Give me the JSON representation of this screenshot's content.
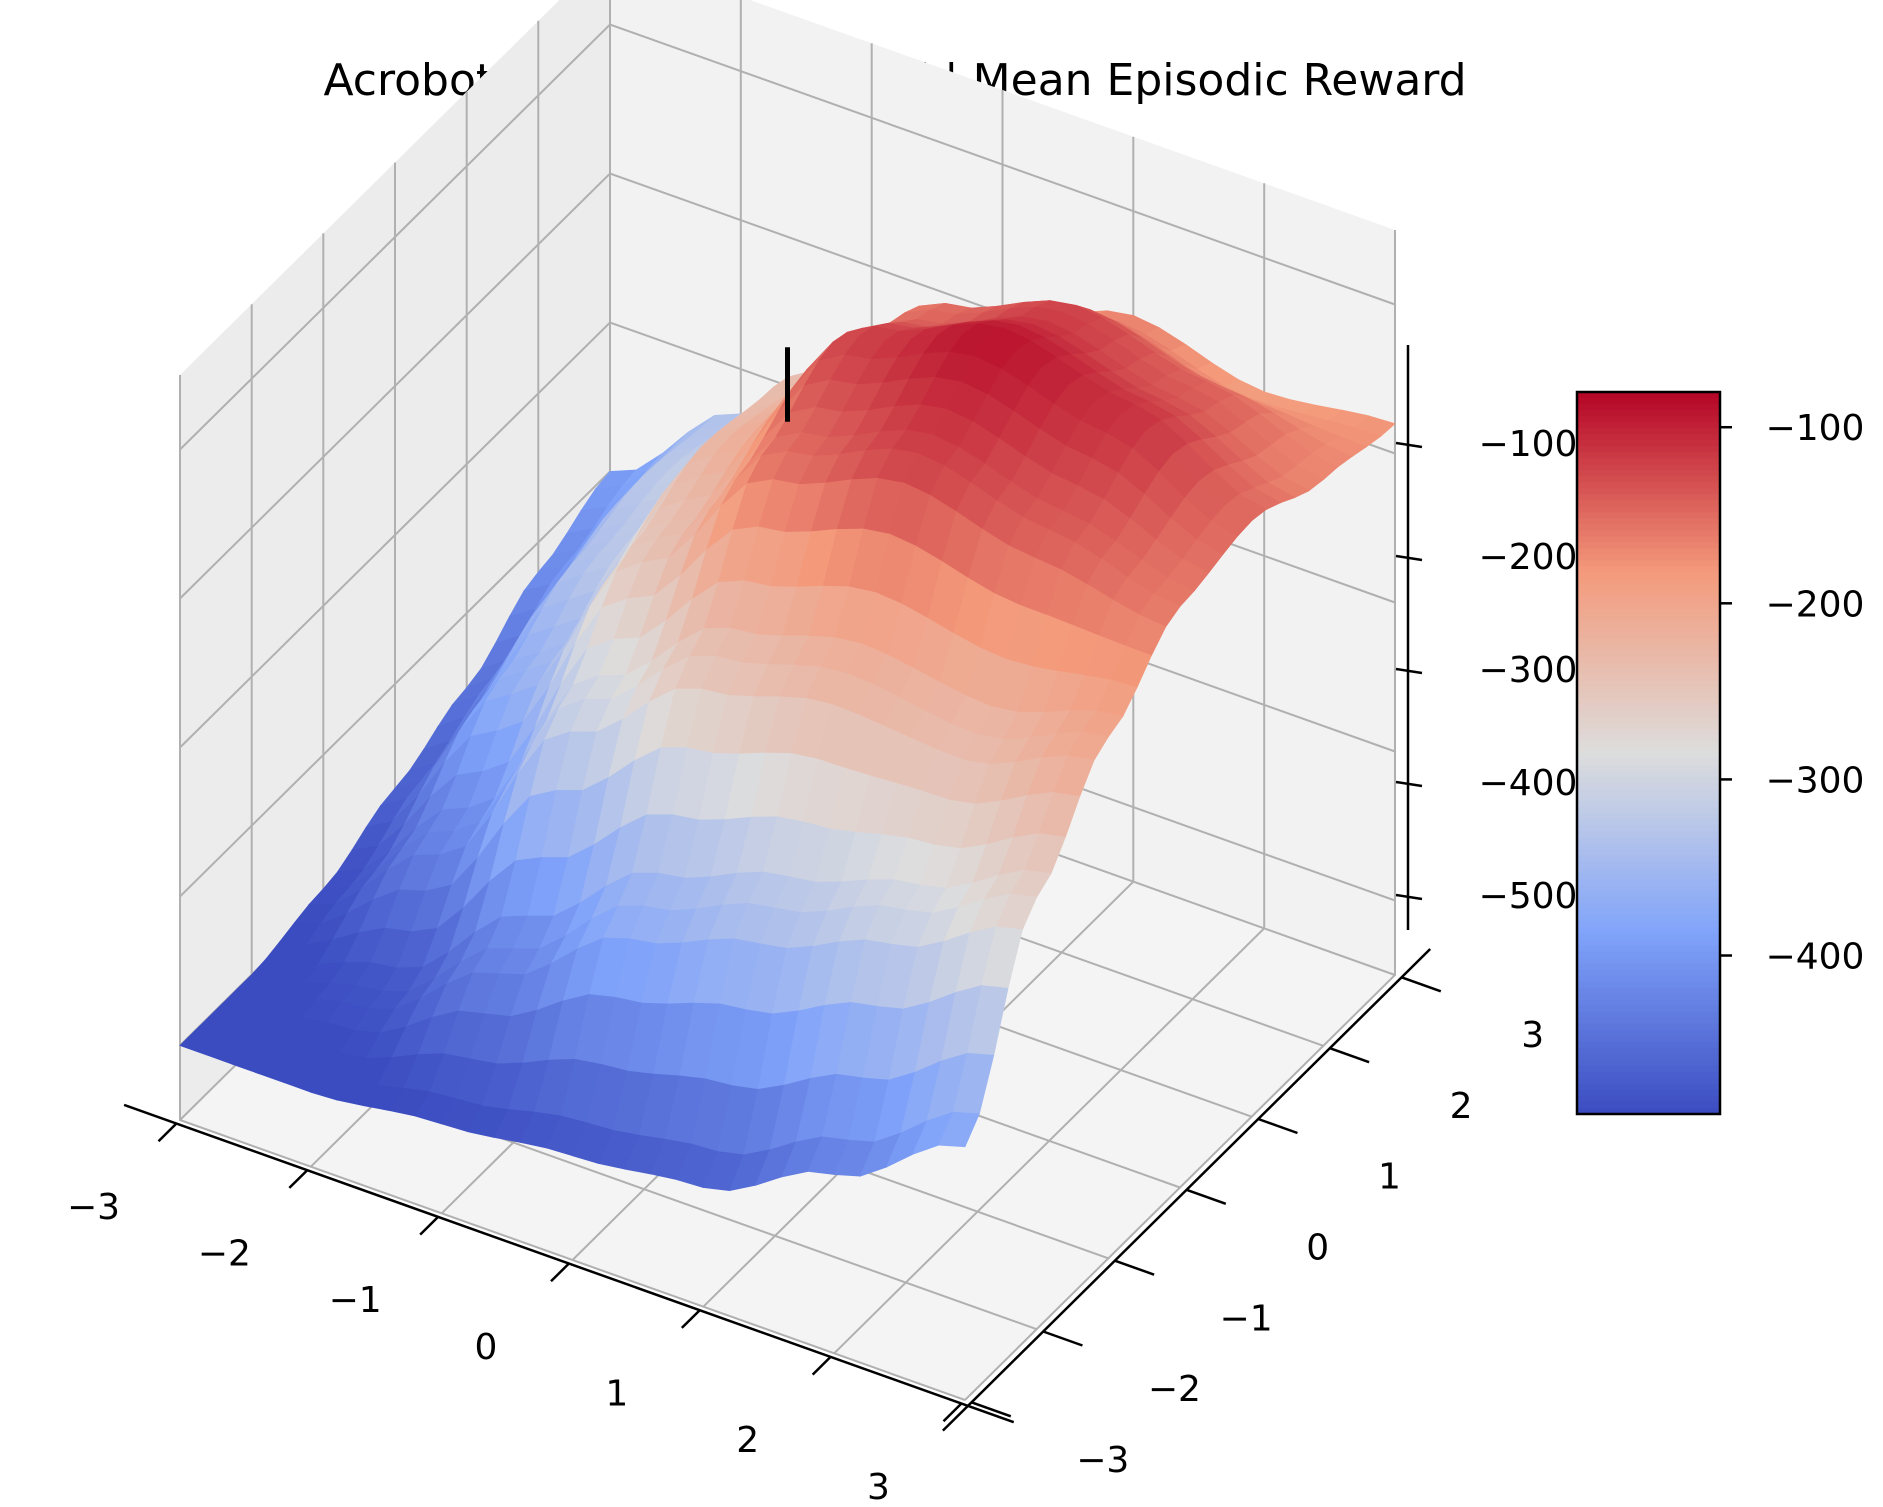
{
  "chart_data": {
    "type": "surface3d",
    "title": "Acrobot-v1 | Classic Control | Mean Episodic Reward",
    "xlabel": "",
    "ylabel": "",
    "zlabel": "",
    "xlim": [
      -3,
      3
    ],
    "ylim": [
      -3,
      3
    ],
    "zlim": [
      -550,
      -50
    ],
    "x_ticks": [
      "−3",
      "−2",
      "−1",
      "0",
      "1",
      "2",
      "3"
    ],
    "y_ticks": [
      "−3",
      "−2",
      "−1",
      "0",
      "1",
      "2",
      "3"
    ],
    "z_ticks": [
      "−500",
      "−400",
      "−300",
      "−200",
      "−100"
    ],
    "colorbar": {
      "min": -490,
      "max": -80,
      "ticks": [
        "−400",
        "−300",
        "−200",
        "−100"
      ],
      "colormap": "coolwarm"
    },
    "surface": {
      "description_grid_x": [
        -3,
        -2,
        -1,
        0,
        1,
        2,
        3
      ],
      "description_grid_y": [
        -3,
        -2,
        -1,
        0,
        1,
        2,
        3
      ],
      "z": [
        [
          -500,
          -500,
          -490,
          -480,
          -470,
          -430,
          -380
        ],
        [
          -500,
          -480,
          -420,
          -360,
          -330,
          -300,
          -260
        ],
        [
          -490,
          -420,
          -300,
          -240,
          -220,
          -230,
          -200
        ],
        [
          -470,
          -360,
          -240,
          -150,
          -120,
          -140,
          -160
        ],
        [
          -450,
          -330,
          -220,
          -120,
          -90,
          -110,
          -150
        ],
        [
          -420,
          -320,
          -230,
          -150,
          -120,
          -140,
          -170
        ],
        [
          -400,
          -330,
          -260,
          -200,
          -170,
          -190,
          -180
        ]
      ]
    },
    "marker": {
      "x": 0,
      "y": 0,
      "z_top": -80,
      "z_bottom": -130,
      "color": "#000000"
    },
    "colors": {
      "low": "#3b4cc0",
      "mid": "#dddddd",
      "high": "#b40426",
      "pane": "#f2f2f2",
      "grid": "#b0b0b0"
    }
  }
}
